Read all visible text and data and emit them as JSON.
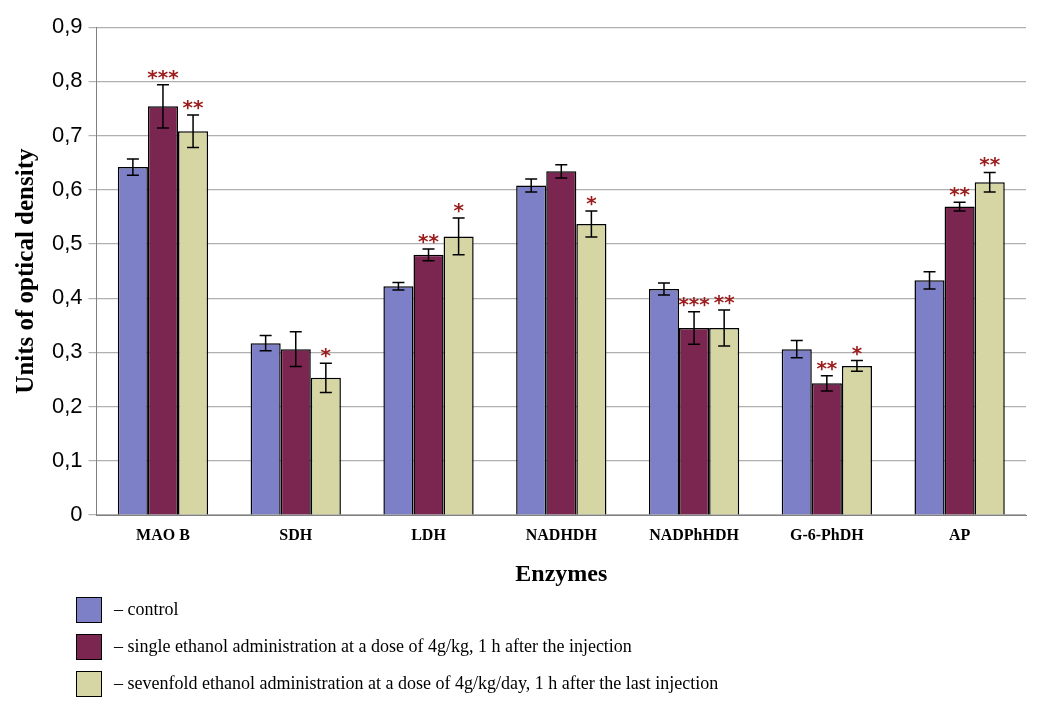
{
  "chart_data": {
    "type": "bar",
    "xlabel": "Enzymes",
    "ylabel": "Units of optical density",
    "categories": [
      "MAO B",
      "SDH",
      "LDH",
      "NADHDH",
      "NADPhHDH",
      "G-6-PhDH",
      "AP"
    ],
    "series": [
      {
        "name": "– control",
        "color": "#7d80c6",
        "values": [
          0.642,
          0.317,
          0.422,
          0.608,
          0.417,
          0.306,
          0.433
        ],
        "errors": [
          0.015,
          0.014,
          0.007,
          0.012,
          0.011,
          0.016,
          0.016
        ],
        "value_labels": [
          null,
          null,
          null,
          null,
          null,
          null,
          null
        ]
      },
      {
        "name": "– single ethanol administration at a dose of 4g/kg, 1 h after the injection",
        "color": "#7a2650",
        "values": [
          0.754,
          0.306,
          0.48,
          0.634,
          0.345,
          0.243,
          0.569
        ],
        "errors": [
          0.04,
          0.032,
          0.011,
          0.012,
          0.03,
          0.014,
          0.008
        ],
        "value_labels": [
          "***",
          null,
          "**",
          null,
          "***",
          "**",
          "**"
        ]
      },
      {
        "name": "– sevenfold ethanol administration at a dose of 4g/kg/day, 1 h after the last injection",
        "color": "#d6d6a4",
        "values": [
          0.708,
          0.253,
          0.514,
          0.537,
          0.345,
          0.275,
          0.614
        ],
        "errors": [
          0.03,
          0.027,
          0.034,
          0.024,
          0.033,
          0.01,
          0.018
        ],
        "value_labels": [
          "**",
          "*",
          "*",
          "*",
          "**",
          "*",
          "**"
        ]
      }
    ],
    "ylim": [
      0,
      0.9
    ],
    "yticks": [
      {
        "value": 0,
        "label": "0"
      },
      {
        "value": 0.1,
        "label": "0,1"
      },
      {
        "value": 0.2,
        "label": "0,2"
      },
      {
        "value": 0.3,
        "label": "0,3"
      },
      {
        "value": 0.4,
        "label": "0,4"
      },
      {
        "value": 0.5,
        "label": "0,5"
      },
      {
        "value": 0.6,
        "label": "0,6"
      },
      {
        "value": 0.7,
        "label": "0,7"
      },
      {
        "value": 0.8,
        "label": "0,8"
      },
      {
        "value": 0.9,
        "label": "0,9"
      }
    ],
    "grid": "y",
    "legend": "bottom"
  }
}
